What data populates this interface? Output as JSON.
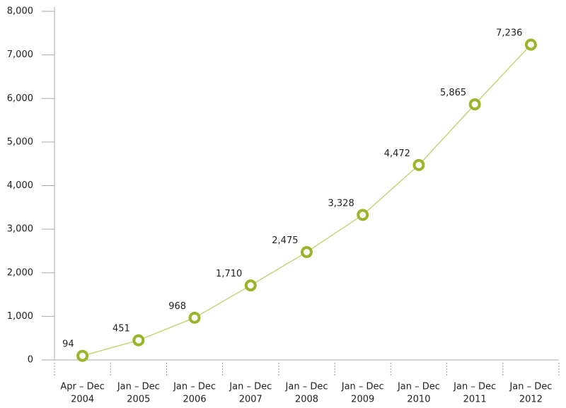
{
  "chart_data": {
    "type": "line",
    "categories": [
      [
        "Apr – Dec",
        "2004"
      ],
      [
        "Jan – Dec",
        "2005"
      ],
      [
        "Jan – Dec",
        "2006"
      ],
      [
        "Jan – Dec",
        "2007"
      ],
      [
        "Jan – Dec",
        "2008"
      ],
      [
        "Jan – Dec",
        "2009"
      ],
      [
        "Jan – Dec",
        "2010"
      ],
      [
        "Jan – Dec",
        "2011"
      ],
      [
        "Jan – Dec",
        "2012"
      ]
    ],
    "values": [
      94,
      451,
      968,
      1710,
      2475,
      3328,
      4472,
      5865,
      7236
    ],
    "value_labels": [
      "94",
      "451",
      "968",
      "1,710",
      "2,475",
      "3,328",
      "4,472",
      "5,865",
      "7,236"
    ],
    "color": "#9ab52a",
    "ylim": [
      0,
      8000
    ],
    "yticks": [
      0,
      {
        "value": 1000,
        "label": "1,000"
      },
      {
        "value": 2000,
        "label": "2,000"
      },
      {
        "value": 3000,
        "label": "3,000"
      },
      {
        "value": 4000,
        "label": "4,000"
      },
      {
        "value": 5000,
        "label": "5,000"
      },
      {
        "value": 6000,
        "label": "6,000"
      },
      {
        "value": 7000,
        "label": "7,000"
      },
      {
        "value": 8000,
        "label": "8,000"
      }
    ]
  }
}
